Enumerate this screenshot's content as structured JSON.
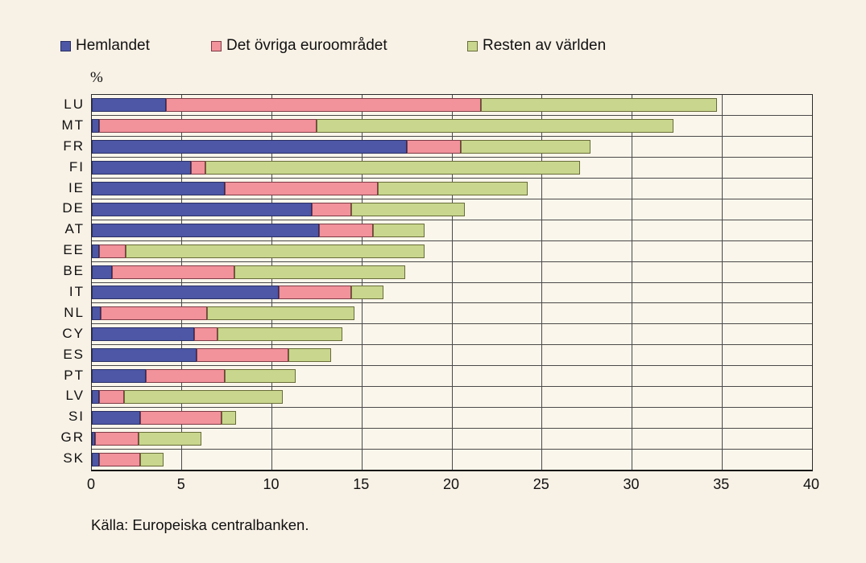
{
  "legend": [
    {
      "label": "Hemlandet",
      "color": "#4d57a6",
      "border": "#2a2f63"
    },
    {
      "label": "Det övriga euroområdet",
      "color": "#f2929b",
      "border": "#7e3c46"
    },
    {
      "label": "Resten av världen",
      "color": "#c8d78d",
      "border": "#686c39"
    }
  ],
  "axis_unit_label": "%",
  "source": "Källa: Europeiska centralbanken.",
  "chart_data": {
    "type": "bar",
    "orientation": "horizontal",
    "stacked": true,
    "title": "",
    "xlabel": "%",
    "ylabel": "",
    "xlim": [
      0,
      40
    ],
    "xticks": [
      0,
      5,
      10,
      15,
      20,
      25,
      30,
      35,
      40
    ],
    "grid": true,
    "legend_position": "top",
    "categories": [
      "LU",
      "MT",
      "FR",
      "FI",
      "IE",
      "DE",
      "AT",
      "EE",
      "BE",
      "IT",
      "NL",
      "CY",
      "ES",
      "PT",
      "LV",
      "SI",
      "GR",
      "SK"
    ],
    "series": [
      {
        "name": "Hemlandet",
        "values": [
          4.1,
          0.4,
          17.5,
          5.5,
          7.4,
          12.2,
          12.6,
          0.4,
          1.1,
          10.4,
          0.5,
          5.7,
          5.8,
          3.0,
          0.4,
          2.7,
          0.2,
          0.4
        ]
      },
      {
        "name": "Det övriga euroområdet",
        "values": [
          17.5,
          12.1,
          3.0,
          0.8,
          8.5,
          2.2,
          3.0,
          1.5,
          6.8,
          4.0,
          5.9,
          1.3,
          5.1,
          4.4,
          1.4,
          4.5,
          2.4,
          2.3
        ]
      },
      {
        "name": "Resten av världen",
        "values": [
          13.1,
          19.8,
          7.2,
          20.8,
          8.3,
          6.3,
          2.9,
          16.6,
          9.5,
          1.8,
          8.2,
          6.9,
          2.4,
          3.9,
          8.8,
          0.8,
          3.5,
          1.3
        ]
      }
    ],
    "totals": [
      34.7,
      32.3,
      27.7,
      27.1,
      24.2,
      20.7,
      18.5,
      18.5,
      17.4,
      16.2,
      14.6,
      13.9,
      13.3,
      11.3,
      10.6,
      8.0,
      6.1,
      4.0
    ]
  },
  "colors": {
    "page_background": "#f8f1e6",
    "plot_background": "#fbf6eb",
    "gridline": "#4a4a4a",
    "text": "#111111"
  }
}
